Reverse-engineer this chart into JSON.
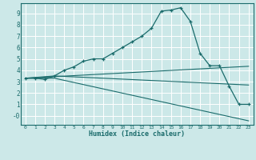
{
  "xlabel": "Humidex (Indice chaleur)",
  "bg_color": "#cce8e8",
  "line_color": "#1a6b6b",
  "grid_color": "#ffffff",
  "xlim": [
    -0.5,
    23.5
  ],
  "ylim": [
    -0.8,
    9.9
  ],
  "xticks": [
    0,
    1,
    2,
    3,
    4,
    5,
    6,
    7,
    8,
    9,
    10,
    11,
    12,
    13,
    14,
    15,
    16,
    17,
    18,
    19,
    20,
    21,
    22,
    23
  ],
  "yticks": [
    0,
    1,
    2,
    3,
    4,
    5,
    6,
    7,
    8,
    9
  ],
  "ytick_labels": [
    "-0",
    "1",
    "2",
    "3",
    "4",
    "5",
    "6",
    "7",
    "8",
    "9"
  ],
  "line1_x": [
    0,
    1,
    2,
    3,
    4,
    5,
    6,
    7,
    8,
    9,
    10,
    11,
    12,
    13,
    14,
    15,
    16,
    17,
    18,
    19,
    20,
    21,
    22,
    23
  ],
  "line1_y": [
    3.3,
    3.3,
    3.2,
    3.5,
    4.0,
    4.3,
    4.8,
    5.0,
    5.0,
    5.5,
    6.0,
    6.5,
    7.0,
    7.7,
    9.2,
    9.3,
    9.5,
    8.3,
    5.5,
    4.4,
    4.4,
    2.6,
    1.0,
    1.0
  ],
  "line2_x": [
    0,
    3,
    23
  ],
  "line2_y": [
    3.3,
    3.5,
    2.7
  ],
  "line3_x": [
    0,
    3,
    23
  ],
  "line3_y": [
    3.3,
    3.3,
    -0.45
  ],
  "line4_x": [
    0,
    23
  ],
  "line4_y": [
    3.3,
    4.35
  ]
}
